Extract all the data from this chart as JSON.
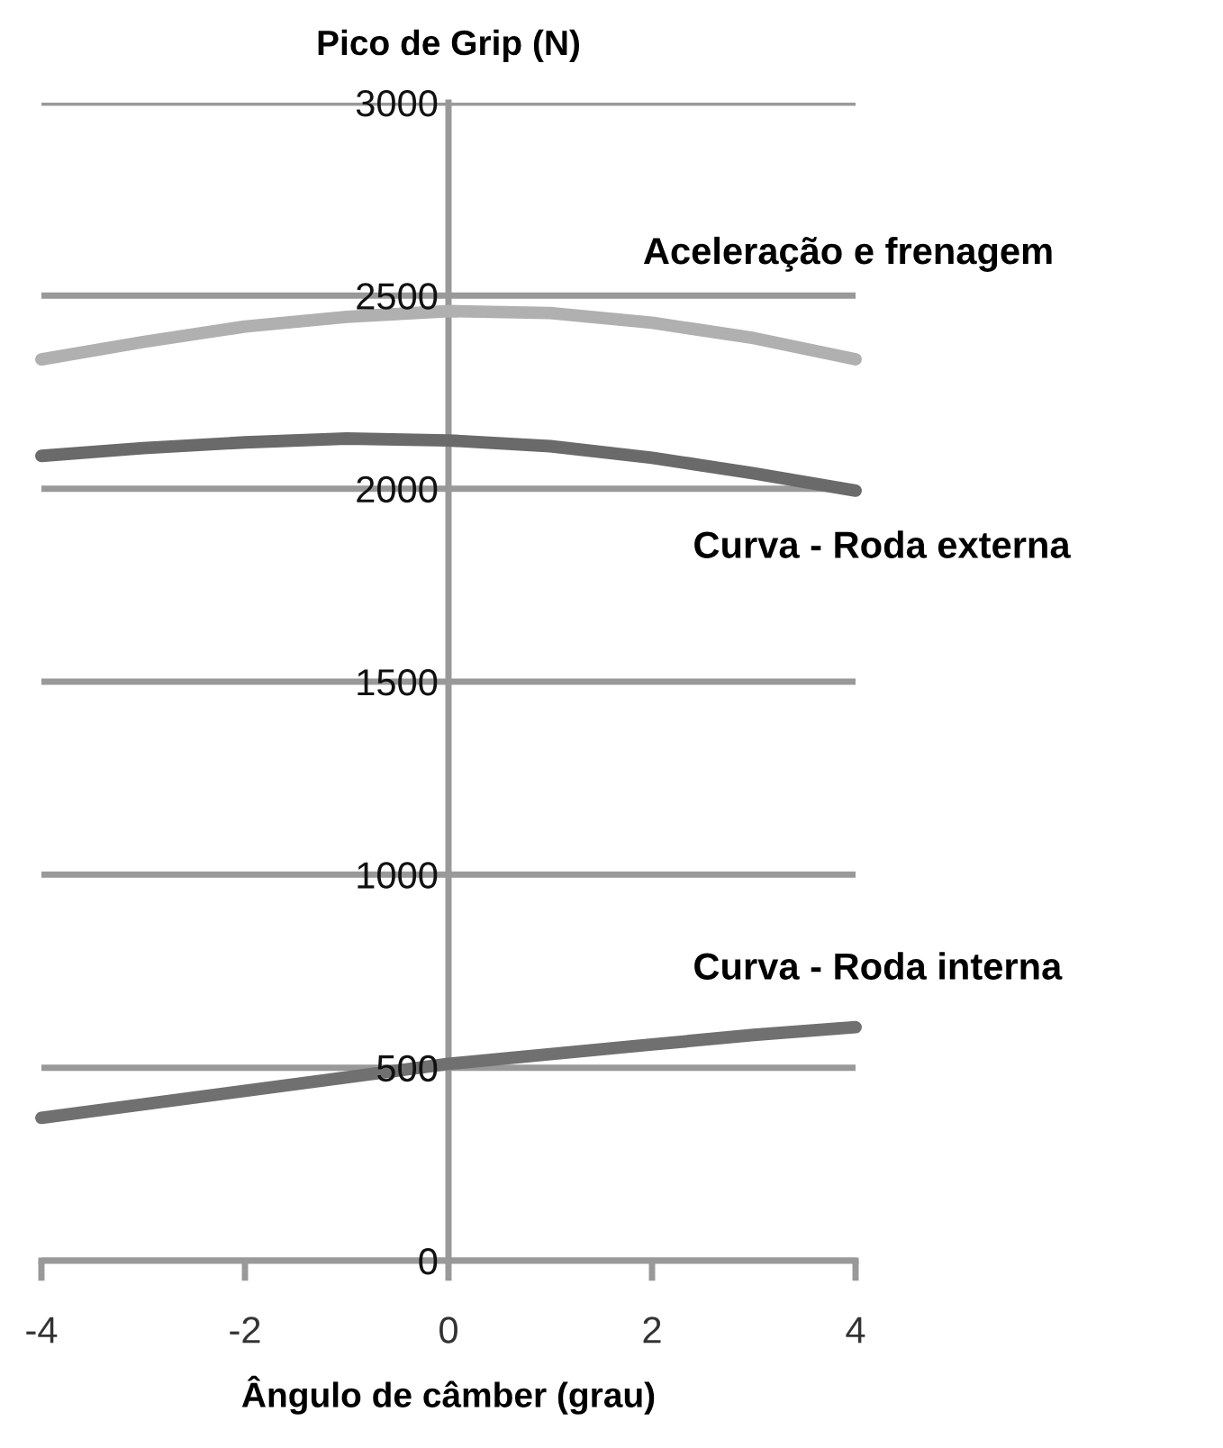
{
  "chart_data": {
    "type": "line",
    "xlabel": "Ângulo de câmber (grau)",
    "ylabel": "Pico de Grip (N)",
    "x": [
      -4,
      -3,
      -2,
      -1,
      0,
      1,
      2,
      3,
      4
    ],
    "series": [
      {
        "name": "Aceleração e frenagem",
        "color": "#b0b0b0",
        "values": [
          2335,
          2380,
          2420,
          2445,
          2460,
          2455,
          2430,
          2390,
          2335
        ]
      },
      {
        "name": "Curva - Roda externa",
        "color": "#6a6a6a",
        "values": [
          2085,
          2105,
          2120,
          2130,
          2125,
          2110,
          2080,
          2040,
          1995
        ]
      },
      {
        "name": "Curva - Roda interna",
        "color": "#707070",
        "values": [
          370,
          405,
          440,
          475,
          510,
          535,
          560,
          585,
          605
        ]
      }
    ],
    "xlim": [
      -4,
      4
    ],
    "ylim": [
      0,
      3000
    ],
    "xticks": [
      -4,
      -2,
      0,
      2,
      4
    ],
    "yticks": [
      0,
      500,
      1000,
      1500,
      2000,
      2500,
      3000
    ],
    "grid": "y",
    "legend": false,
    "marker": "none",
    "line_style": "solid"
  }
}
